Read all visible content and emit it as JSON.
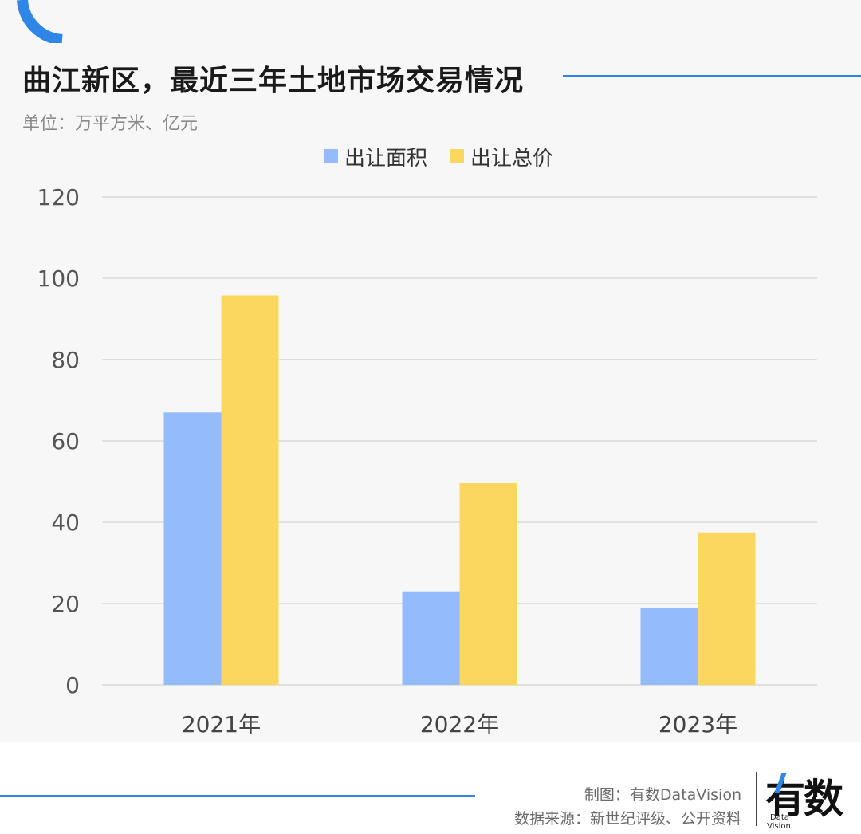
{
  "title": "曲江新区，最近三年土地市场交易情况",
  "unit": "单位：万平方米、亿元",
  "credits": {
    "maker": "制图：有数DataVision",
    "source": "数据来源：新世纪评级、公开资料"
  },
  "logo": {
    "main": "有数",
    "sub1": "Data",
    "sub2": "Vision"
  },
  "colors": {
    "accent": "#2f86e6",
    "area": "#94bbfb",
    "price": "#fbd760",
    "grid": "#d9d9d9"
  },
  "chart_data": {
    "type": "bar",
    "categories": [
      "2021年",
      "2022年",
      "2023年"
    ],
    "series": [
      {
        "name": "出让面积",
        "values": [
          67,
          23,
          19
        ],
        "color": "#94bbfb"
      },
      {
        "name": "出让总价",
        "values": [
          95.8,
          49.6,
          37.5
        ],
        "color": "#fbd760"
      }
    ],
    "ylim": [
      0,
      120
    ],
    "yticks": [
      0,
      20,
      40,
      60,
      80,
      100,
      120
    ],
    "grid": true,
    "legend": "top-center",
    "title": "曲江新区，最近三年土地市场交易情况"
  }
}
